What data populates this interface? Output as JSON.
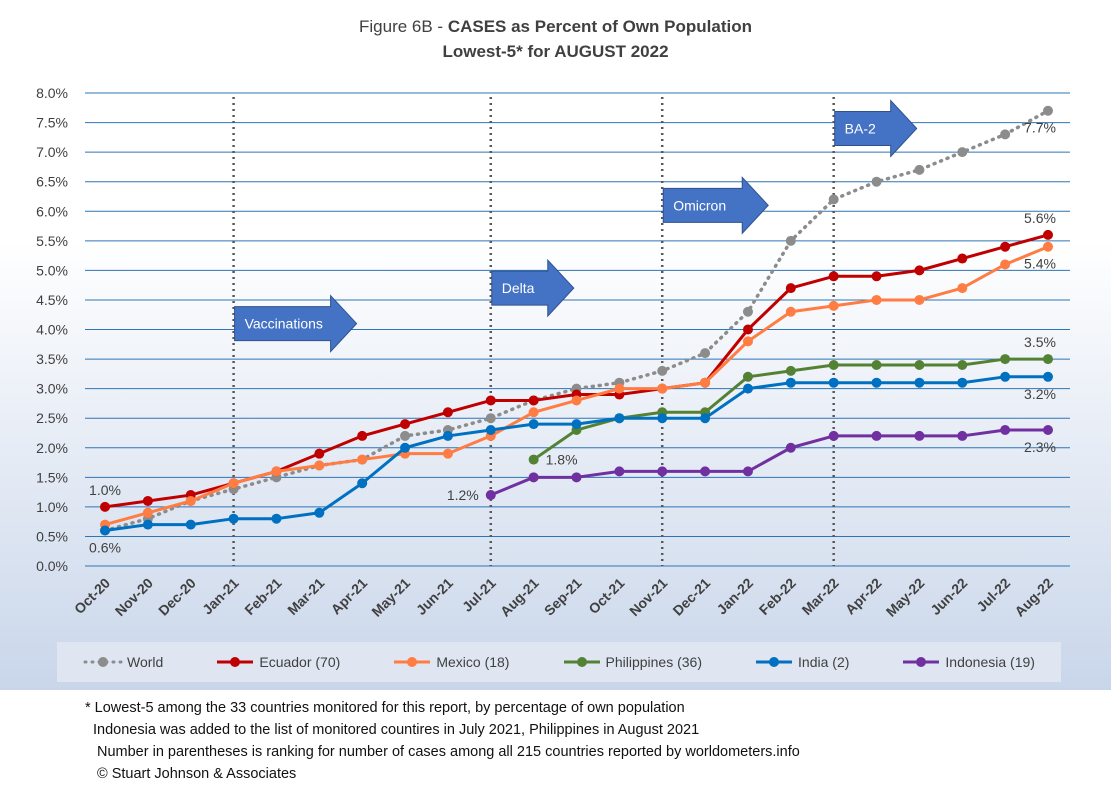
{
  "title": {
    "prefix": "Figure 6B - ",
    "bold": "CASES as Percent of Own Population",
    "line2": "Lowest-5* for AUGUST 2022"
  },
  "footnotes": [
    "* Lowest-5 among the 33 countries monitored for this report, by percentage of own population",
    "Indonesia was added to the list of monitored countires in July 2021, Philippines in August 2021",
    "Number in parentheses is ranking for number of cases among all 215 countries reported by worldometers.info",
    "© Stuart Johnson & Associates"
  ],
  "chart_data": {
    "type": "line",
    "title": "Figure 6B - CASES as Percent of Own Population Lowest-5* for AUGUST 2022",
    "ylim": [
      0,
      8
    ],
    "y_ticks": [
      "0.0%",
      "0.5%",
      "1.0%",
      "1.5%",
      "2.0%",
      "2.5%",
      "3.0%",
      "3.5%",
      "4.0%",
      "4.5%",
      "5.0%",
      "5.5%",
      "6.0%",
      "6.5%",
      "7.0%",
      "7.5%",
      "8.0%"
    ],
    "categories": [
      "Oct-20",
      "Nov-20",
      "Dec-20",
      "Jan-21",
      "Feb-21",
      "Mar-21",
      "Apr-21",
      "May-21",
      "Jun-21",
      "Jul-21",
      "Aug-21",
      "Sep-21",
      "Oct-21",
      "Nov-21",
      "Dec-21",
      "Jan-22",
      "Feb-22",
      "Mar-22",
      "Apr-22",
      "May-22",
      "Jun-22",
      "Jul-22",
      "Aug-22"
    ],
    "grid": true,
    "legend_position": "bottom",
    "series": [
      {
        "name": "World",
        "color": "#8c8c8c",
        "dashed": true,
        "values": [
          0.6,
          0.8,
          1.1,
          1.3,
          1.5,
          1.7,
          1.8,
          2.2,
          2.3,
          2.5,
          2.8,
          3.0,
          3.1,
          3.3,
          3.6,
          4.3,
          5.5,
          6.2,
          6.5,
          6.7,
          7.0,
          7.3,
          7.7
        ]
      },
      {
        "name": "Ecuador (70)",
        "color": "#c00000",
        "values": [
          1.0,
          1.1,
          1.2,
          1.4,
          1.6,
          1.9,
          2.2,
          2.4,
          2.6,
          2.8,
          2.8,
          2.9,
          2.9,
          3.0,
          3.1,
          4.0,
          4.7,
          4.9,
          4.9,
          5.0,
          5.2,
          5.4,
          5.6
        ]
      },
      {
        "name": "Mexico (18)",
        "color": "#ff7c43",
        "values": [
          0.7,
          0.9,
          1.1,
          1.4,
          1.6,
          1.7,
          1.8,
          1.9,
          1.9,
          2.2,
          2.6,
          2.8,
          3.0,
          3.0,
          3.1,
          3.8,
          4.3,
          4.4,
          4.5,
          4.5,
          4.7,
          5.1,
          5.4
        ]
      },
      {
        "name": "Philippines (36)",
        "color": "#548235",
        "values": [
          null,
          null,
          null,
          null,
          null,
          null,
          null,
          null,
          null,
          null,
          1.8,
          2.3,
          2.5,
          2.6,
          2.6,
          3.2,
          3.3,
          3.4,
          3.4,
          3.4,
          3.4,
          3.5,
          3.5
        ]
      },
      {
        "name": "India  (2)",
        "color": "#0070c0",
        "values": [
          0.6,
          0.7,
          0.7,
          0.8,
          0.8,
          0.9,
          1.4,
          2.0,
          2.2,
          2.3,
          2.4,
          2.4,
          2.5,
          2.5,
          2.5,
          3.0,
          3.1,
          3.1,
          3.1,
          3.1,
          3.1,
          3.2,
          3.2
        ]
      },
      {
        "name": "Indonesia (19)",
        "color": "#7030a0",
        "values": [
          null,
          null,
          null,
          null,
          null,
          null,
          null,
          null,
          null,
          1.2,
          1.5,
          1.5,
          1.6,
          1.6,
          1.6,
          1.6,
          2.0,
          2.2,
          2.2,
          2.2,
          2.2,
          2.3,
          2.3
        ]
      }
    ],
    "vertical_markers": [
      "Jan-21",
      "Jul-21",
      "Nov-21",
      "Mar-22"
    ],
    "arrows": [
      {
        "label": "Vaccinations",
        "at": "Jan-21",
        "y": 4.1
      },
      {
        "label": "Delta",
        "at": "Jul-21",
        "y": 4.7
      },
      {
        "label": "Omicron",
        "at": "Nov-21",
        "y": 6.1
      },
      {
        "label": "BA-2",
        "at": "Mar-22",
        "y": 7.4
      }
    ],
    "annotations": [
      {
        "text": "1.0%",
        "series": "Ecuador (70)",
        "at": "Oct-20",
        "pos": "above"
      },
      {
        "text": "0.6%",
        "series": "World",
        "at": "Oct-20",
        "pos": "below"
      },
      {
        "text": "1.2%",
        "series": "Indonesia (19)",
        "at": "Jul-21",
        "pos": "left"
      },
      {
        "text": "1.8%",
        "series": "Philippines (36)",
        "at": "Aug-21",
        "pos": "right"
      },
      {
        "text": "7.7%",
        "series": "World",
        "at": "Aug-22",
        "pos": "below"
      },
      {
        "text": "5.6%",
        "series": "Ecuador (70)",
        "at": "Aug-22",
        "pos": "above"
      },
      {
        "text": "5.4%",
        "series": "Mexico (18)",
        "at": "Aug-22",
        "pos": "below"
      },
      {
        "text": "3.5%",
        "series": "Philippines (36)",
        "at": "Aug-22",
        "pos": "above"
      },
      {
        "text": "3.2%",
        "series": "India  (2)",
        "at": "Aug-22",
        "pos": "below"
      },
      {
        "text": "2.3%",
        "series": "Indonesia (19)",
        "at": "Aug-22",
        "pos": "below"
      }
    ]
  }
}
